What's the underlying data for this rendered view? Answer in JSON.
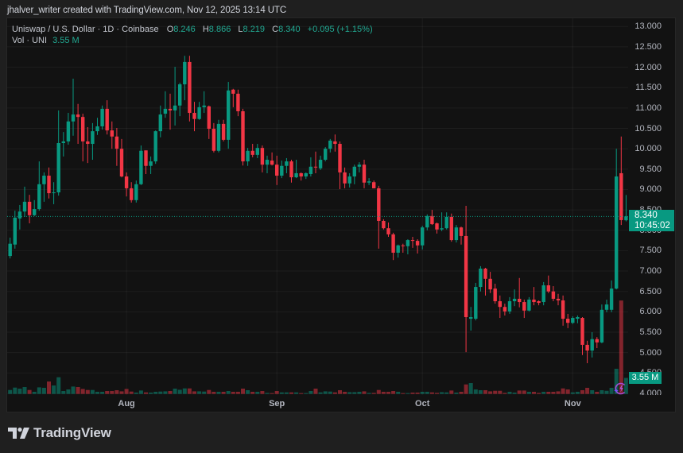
{
  "header": {
    "attribution": "jhalver_writer created with TradingView.com, Nov 12, 2025 13:14 UTC"
  },
  "legend": {
    "symbol_desc": "Uniswap / U.S. Dollar · 1D · Coinbase",
    "o_label": "O",
    "o_value": "8.246",
    "h_label": "H",
    "h_value": "8.866",
    "l_label": "L",
    "l_value": "8.219",
    "c_label": "C",
    "c_value": "8.340",
    "change": "+0.095 (+1.15%)",
    "vol_label": "Vol · UNI",
    "vol_value": "3.55 M"
  },
  "last_price_label": {
    "price": "8.340",
    "countdown": "10:45:02"
  },
  "volume_label": {
    "value": "3.55 M"
  },
  "icons": {
    "event_marker": "lightning-event-icon",
    "brand_logo": "tradingview-logo-icon"
  },
  "branding": {
    "logo_text": "TradingView"
  },
  "colors": {
    "up": "#089981",
    "down": "#f23645",
    "up_text": "#22ab94",
    "volume_up": "rgba(8,153,129,0.5)",
    "volume_down": "rgba(242,54,69,0.5)",
    "event_icon": "#a94bd6",
    "panel_bg": "#121212",
    "page_bg": "#1f1f1f"
  },
  "chart_data": {
    "type": "candlestick",
    "title": "Uniswap / U.S. Dollar · 1D · Coinbase",
    "xlabel": "",
    "ylabel": "",
    "ylim": [
      3.96,
      13.22
    ],
    "grid": true,
    "last_price": 8.34,
    "x_ticks": [
      {
        "index": 24,
        "label": "Aug"
      },
      {
        "index": 55,
        "label": "Sep"
      },
      {
        "index": 85,
        "label": "Oct"
      },
      {
        "index": 116,
        "label": "Nov"
      }
    ],
    "y_ticks": [
      {
        "value": 13.0,
        "label": "13.000"
      },
      {
        "value": 12.5,
        "label": "12.500"
      },
      {
        "value": 12.0,
        "label": "12.000"
      },
      {
        "value": 11.5,
        "label": "11.500"
      },
      {
        "value": 11.0,
        "label": "11.000"
      },
      {
        "value": 10.5,
        "label": "10.500"
      },
      {
        "value": 10.0,
        "label": "10.000"
      },
      {
        "value": 9.5,
        "label": "9.500"
      },
      {
        "value": 9.0,
        "label": "9.000"
      },
      {
        "value": 8.5,
        "label": "8.500"
      },
      {
        "value": 8.0,
        "label": "8.000"
      },
      {
        "value": 7.5,
        "label": "7.500"
      },
      {
        "value": 7.0,
        "label": "7.000"
      },
      {
        "value": 6.5,
        "label": "6.500"
      },
      {
        "value": 6.0,
        "label": "6.000"
      },
      {
        "value": 5.5,
        "label": "5.500"
      },
      {
        "value": 5.0,
        "label": "5.000"
      },
      {
        "value": 4.5,
        "label": "4.500"
      },
      {
        "value": 4.0,
        "label": "4.000"
      }
    ],
    "columns": [
      "open",
      "high",
      "low",
      "close",
      "volume_M"
    ],
    "candles": [
      [
        7.37,
        7.82,
        7.31,
        7.67,
        0.88
      ],
      [
        7.65,
        8.48,
        7.55,
        8.31,
        1.41
      ],
      [
        8.29,
        8.62,
        8.02,
        8.46,
        1.18
      ],
      [
        8.46,
        9.07,
        8.33,
        8.7,
        1.53
      ],
      [
        8.7,
        8.87,
        8.17,
        8.37,
        0.88
      ],
      [
        8.37,
        8.74,
        8.35,
        8.52,
        0.48
      ],
      [
        8.52,
        9.69,
        8.48,
        9.13,
        1.46
      ],
      [
        9.13,
        9.42,
        8.7,
        9.34,
        1.36
      ],
      [
        9.34,
        9.54,
        8.78,
        8.91,
        2.76
      ],
      [
        8.91,
        9.18,
        8.64,
        8.93,
        1.88
      ],
      [
        8.93,
        10.94,
        8.85,
        10.14,
        3.7
      ],
      [
        10.14,
        10.41,
        9.81,
        10.18,
        0.65
      ],
      [
        10.18,
        10.88,
        10.1,
        10.67,
        1.0
      ],
      [
        10.67,
        11.72,
        10.32,
        10.84,
        1.64
      ],
      [
        10.84,
        11.1,
        10.12,
        10.78,
        1.53
      ],
      [
        10.78,
        10.86,
        9.69,
        10.18,
        1.11
      ],
      [
        10.18,
        10.53,
        9.65,
        10.12,
        0.88
      ],
      [
        10.12,
        10.63,
        9.73,
        10.43,
        0.88
      ],
      [
        10.43,
        10.76,
        10.34,
        10.55,
        0.48
      ],
      [
        10.55,
        11.06,
        10.47,
        10.98,
        0.48
      ],
      [
        10.98,
        11.19,
        10.35,
        10.45,
        0.65
      ],
      [
        10.45,
        10.67,
        10.0,
        10.3,
        0.65
      ],
      [
        10.3,
        10.51,
        9.58,
        10.0,
        0.83
      ],
      [
        10.0,
        10.24,
        9.3,
        9.32,
        0.58
      ],
      [
        9.32,
        9.42,
        8.83,
        9.03,
        1.11
      ],
      [
        9.03,
        9.18,
        8.68,
        8.74,
        0.53
      ],
      [
        8.74,
        9.22,
        8.68,
        9.13,
        0.3
      ],
      [
        9.13,
        10.08,
        9.11,
        9.95,
        0.76
      ],
      [
        9.96,
        9.96,
        9.38,
        9.58,
        0.35
      ],
      [
        9.58,
        9.81,
        9.38,
        9.69,
        0.3
      ],
      [
        9.69,
        10.45,
        9.63,
        10.43,
        0.48
      ],
      [
        10.43,
        11.06,
        10.28,
        10.84,
        0.53
      ],
      [
        10.86,
        11.41,
        10.76,
        10.98,
        0.58
      ],
      [
        10.98,
        11.35,
        10.47,
        10.94,
        0.65
      ],
      [
        10.94,
        12.01,
        10.57,
        11.06,
        1.18
      ],
      [
        11.06,
        11.62,
        10.8,
        11.58,
        0.93
      ],
      [
        11.58,
        12.28,
        11.19,
        12.13,
        1.23
      ],
      [
        12.13,
        12.28,
        10.67,
        10.88,
        1.23
      ],
      [
        10.88,
        11.15,
        10.43,
        10.73,
        0.58
      ],
      [
        10.73,
        11.15,
        10.71,
        11.02,
        0.58
      ],
      [
        11.02,
        11.41,
        10.88,
        11.06,
        0.53
      ],
      [
        11.04,
        11.06,
        10.24,
        10.49,
        0.88
      ],
      [
        10.49,
        10.63,
        9.91,
        9.95,
        0.48
      ],
      [
        9.95,
        10.71,
        9.91,
        10.61,
        0.48
      ],
      [
        10.61,
        10.71,
        10.18,
        10.22,
        0.48
      ],
      [
        10.22,
        11.64,
        10.0,
        11.43,
        0.65
      ],
      [
        11.45,
        11.47,
        11.02,
        11.35,
        0.48
      ],
      [
        11.35,
        11.45,
        10.8,
        10.92,
        0.48
      ],
      [
        10.92,
        10.98,
        9.59,
        9.69,
        1.18
      ],
      [
        9.69,
        10.02,
        9.58,
        9.95,
        0.83
      ],
      [
        9.95,
        10.12,
        9.79,
        9.85,
        0.48
      ],
      [
        9.85,
        10.12,
        9.77,
        10.02,
        0.48
      ],
      [
        10.02,
        10.08,
        9.42,
        9.61,
        0.65
      ],
      [
        9.61,
        9.83,
        9.4,
        9.73,
        0.23
      ],
      [
        9.71,
        9.91,
        9.59,
        9.61,
        0.18
      ],
      [
        9.61,
        9.83,
        9.11,
        9.34,
        0.65
      ],
      [
        9.34,
        9.71,
        9.28,
        9.58,
        0.35
      ],
      [
        9.58,
        9.77,
        9.4,
        9.69,
        0.35
      ],
      [
        9.69,
        9.73,
        9.17,
        9.3,
        0.35
      ],
      [
        9.3,
        9.73,
        9.28,
        9.4,
        0.35
      ],
      [
        9.4,
        9.42,
        9.22,
        9.32,
        0.18
      ],
      [
        9.32,
        9.42,
        9.26,
        9.4,
        0.18
      ],
      [
        9.38,
        9.79,
        9.32,
        9.56,
        0.65
      ],
      [
        9.56,
        9.93,
        9.4,
        9.54,
        1.18
      ],
      [
        9.52,
        9.83,
        9.48,
        9.73,
        0.35
      ],
      [
        9.73,
        10.04,
        9.69,
        10.0,
        0.58
      ],
      [
        10.0,
        10.24,
        9.91,
        10.2,
        0.53
      ],
      [
        10.18,
        10.35,
        9.93,
        10.12,
        0.35
      ],
      [
        10.12,
        10.18,
        9.01,
        9.42,
        0.83
      ],
      [
        9.42,
        9.54,
        9.03,
        9.15,
        0.48
      ],
      [
        9.15,
        9.4,
        9.05,
        9.32,
        0.4
      ],
      [
        9.32,
        9.61,
        9.13,
        9.56,
        0.4
      ],
      [
        9.56,
        9.67,
        9.42,
        9.61,
        0.48
      ],
      [
        9.61,
        9.73,
        9.03,
        9.17,
        0.58
      ],
      [
        9.17,
        9.28,
        9.11,
        9.2,
        0.23
      ],
      [
        9.18,
        9.22,
        9.03,
        9.03,
        0.23
      ],
      [
        9.03,
        9.09,
        7.55,
        8.23,
        0.88
      ],
      [
        8.23,
        8.27,
        8.02,
        8.05,
        0.48
      ],
      [
        8.05,
        8.19,
        7.84,
        7.9,
        0.48
      ],
      [
        7.9,
        7.94,
        7.27,
        7.45,
        0.65
      ],
      [
        7.45,
        7.65,
        7.33,
        7.63,
        0.48
      ],
      [
        7.63,
        7.67,
        7.45,
        7.61,
        0.18
      ],
      [
        7.61,
        7.78,
        7.41,
        7.76,
        0.18
      ],
      [
        7.76,
        7.84,
        7.57,
        7.74,
        0.3
      ],
      [
        7.74,
        7.78,
        7.43,
        7.63,
        0.3
      ],
      [
        7.63,
        8.11,
        7.53,
        8.07,
        0.48
      ],
      [
        8.07,
        8.39,
        8.0,
        8.35,
        0.48
      ],
      [
        8.35,
        8.5,
        8.13,
        8.15,
        0.35
      ],
      [
        8.17,
        8.19,
        7.92,
        8.02,
        0.23
      ],
      [
        8.02,
        8.44,
        7.98,
        8.05,
        0.4
      ],
      [
        8.05,
        8.44,
        8.02,
        8.33,
        0.35
      ],
      [
        8.33,
        8.41,
        7.72,
        7.76,
        0.76
      ],
      [
        7.76,
        8.13,
        7.7,
        8.07,
        0.3
      ],
      [
        8.07,
        8.09,
        7.65,
        7.86,
        0.48
      ],
      [
        7.86,
        8.6,
        5.01,
        5.87,
        2.11
      ],
      [
        5.83,
        6.12,
        5.54,
        5.87,
        2.41
      ],
      [
        5.83,
        6.71,
        5.79,
        6.61,
        1.0
      ],
      [
        6.61,
        7.12,
        6.5,
        7.06,
        0.83
      ],
      [
        7.06,
        7.08,
        6.4,
        6.81,
        0.83
      ],
      [
        6.81,
        6.98,
        6.46,
        6.55,
        0.58
      ],
      [
        6.57,
        6.69,
        6.2,
        6.26,
        0.7
      ],
      [
        6.26,
        6.4,
        5.85,
        6.12,
        0.7
      ],
      [
        6.12,
        6.2,
        5.91,
        6.01,
        0.23
      ],
      [
        6.01,
        6.36,
        5.95,
        6.26,
        0.48
      ],
      [
        6.26,
        6.55,
        6.14,
        6.32,
        0.3
      ],
      [
        6.32,
        6.83,
        6.11,
        6.24,
        0.76
      ],
      [
        6.24,
        6.3,
        5.85,
        6.03,
        0.76
      ],
      [
        6.03,
        6.36,
        6.01,
        6.3,
        0.48
      ],
      [
        6.3,
        6.61,
        6.16,
        6.24,
        0.48
      ],
      [
        6.26,
        6.28,
        6.16,
        6.22,
        0.23
      ],
      [
        6.24,
        6.73,
        6.16,
        6.65,
        0.48
      ],
      [
        6.65,
        6.89,
        6.46,
        6.5,
        0.48
      ],
      [
        6.5,
        6.63,
        6.26,
        6.32,
        0.48
      ],
      [
        6.32,
        6.44,
        6.16,
        6.28,
        0.58
      ],
      [
        6.28,
        6.4,
        5.66,
        5.83,
        1.23
      ],
      [
        5.83,
        5.95,
        5.6,
        5.73,
        1.0
      ],
      [
        5.73,
        5.89,
        5.7,
        5.85,
        0.35
      ],
      [
        5.83,
        5.91,
        5.72,
        5.87,
        0.48
      ],
      [
        5.85,
        5.87,
        4.94,
        5.19,
        0.83
      ],
      [
        5.19,
        5.29,
        4.74,
        5.05,
        1.36
      ],
      [
        5.05,
        5.5,
        4.88,
        5.33,
        0.83
      ],
      [
        5.33,
        5.38,
        5.11,
        5.25,
        0.48
      ],
      [
        5.25,
        6.18,
        5.23,
        6.05,
        0.83
      ],
      [
        6.05,
        6.3,
        5.99,
        6.18,
        0.7
      ],
      [
        6.05,
        6.77,
        5.99,
        6.57,
        1.36
      ],
      [
        6.57,
        10.0,
        6.55,
        9.32,
        5.58
      ],
      [
        9.4,
        10.3,
        8.13,
        8.25,
        20.7
      ],
      [
        8.246,
        8.866,
        8.219,
        8.34,
        3.55
      ]
    ]
  }
}
